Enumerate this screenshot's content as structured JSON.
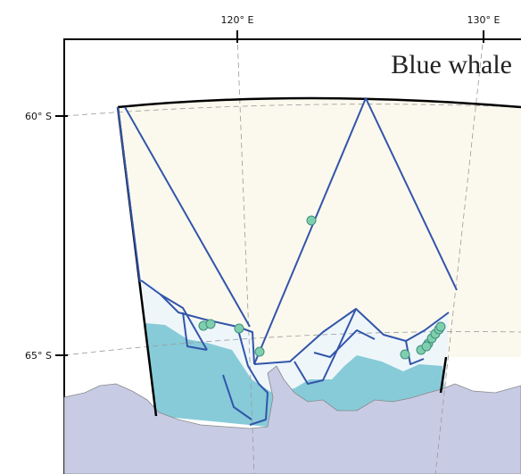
{
  "map": {
    "species_label": "Blue whale",
    "longitude_labels": [
      "120° E",
      "130° E"
    ],
    "latitude_labels": [
      "60° S",
      "65° S"
    ],
    "colors": {
      "survey_area": "#fbf9ee",
      "near_shore_stratum": "#eef6fa",
      "shelf_water": "#87cbd8",
      "land": "#c8cbe4",
      "track_line": "#3355aa",
      "sighting": "#7fcfae",
      "boundary": "#000000",
      "graticule": "#999999"
    },
    "sightings_count": 13
  }
}
